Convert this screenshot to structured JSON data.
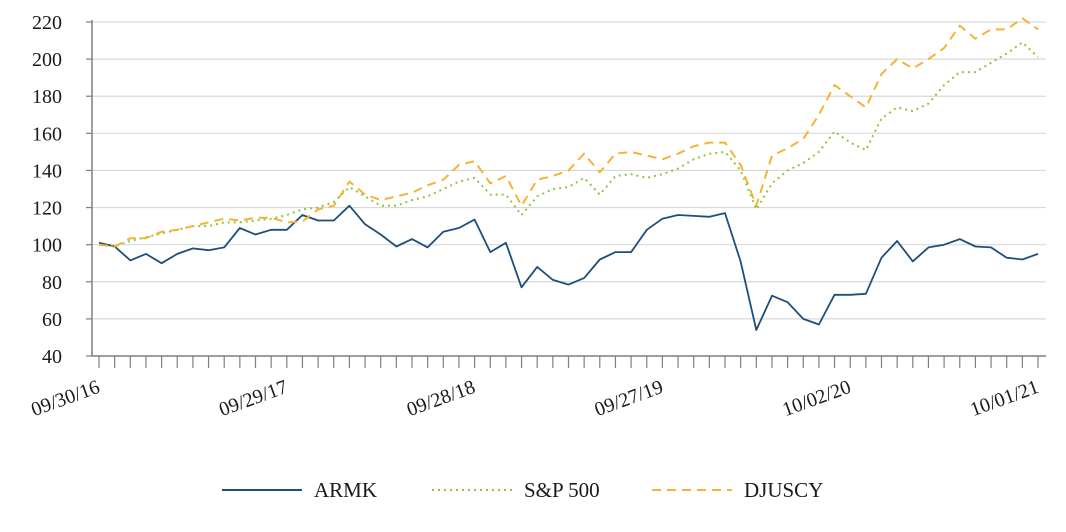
{
  "chart_data": {
    "type": "line",
    "title": "",
    "xlabel": "",
    "ylabel": "",
    "ylim": [
      40,
      220
    ],
    "yticks": [
      40,
      60,
      80,
      100,
      120,
      140,
      160,
      180,
      200,
      220
    ],
    "grid": true,
    "legend_position": "bottom",
    "x_labels": [
      {
        "index": 0,
        "label": "09/30/16"
      },
      {
        "index": 12,
        "label": "09/29/17"
      },
      {
        "index": 24,
        "label": "09/28/18"
      },
      {
        "index": 36,
        "label": "09/27/19"
      },
      {
        "index": 48,
        "label": "10/02/20"
      },
      {
        "index": 60,
        "label": "10/01/21"
      }
    ],
    "x_count": 61,
    "series": [
      {
        "name": "ARMK",
        "color": "#1f4e79",
        "style": "solid",
        "values": [
          101,
          99,
          91.5,
          95,
          90,
          95,
          98,
          97,
          98.5,
          109,
          105.5,
          108,
          108,
          116,
          113,
          113,
          121,
          111,
          105.5,
          99,
          103,
          98.5,
          107,
          109,
          113.5,
          96,
          101,
          77,
          88,
          81,
          78.5,
          82,
          92,
          96,
          96,
          108,
          114,
          116,
          115.5,
          115,
          117,
          91,
          54,
          72.5,
          69,
          60,
          57,
          73,
          73,
          73.5,
          93,
          102,
          91,
          98.5,
          100,
          103,
          99,
          98.5,
          93,
          92,
          95
        ]
      },
      {
        "name": "S&P 500",
        "color": "#8cc63f",
        "style": "dotted",
        "values": [
          100,
          99,
          102,
          104,
          106,
          108,
          110,
          110,
          112,
          112,
          113,
          114,
          116,
          119,
          120,
          123,
          131,
          126,
          121,
          121,
          124,
          126,
          130,
          134,
          136,
          127,
          127,
          116,
          126,
          130,
          131,
          136,
          127,
          137,
          138,
          136,
          138,
          141,
          146,
          149,
          150,
          140,
          119,
          133,
          140,
          144,
          150,
          161,
          155,
          151,
          168,
          174,
          172,
          176,
          186,
          193,
          193,
          198,
          203,
          209,
          201
        ]
      },
      {
        "name": "DJUSCY",
        "color": "#f5b335",
        "style": "dashed",
        "values": [
          100,
          99,
          103.5,
          103.5,
          107,
          108,
          110,
          112,
          114,
          113,
          114.5,
          114.5,
          112,
          112.5,
          119,
          121,
          134,
          127,
          124,
          126,
          128,
          132,
          135,
          143,
          145,
          133,
          137,
          121,
          135,
          137,
          140,
          149,
          139,
          149,
          150,
          148,
          146,
          149,
          153,
          155,
          155,
          143,
          121,
          148,
          152,
          157,
          170,
          186,
          180,
          174,
          192,
          200,
          195,
          200,
          206,
          218,
          211,
          216,
          216,
          222,
          216
        ]
      }
    ]
  }
}
